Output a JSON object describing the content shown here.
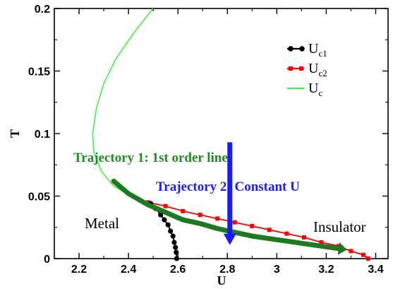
{
  "chart_data": {
    "type": "line",
    "title": "",
    "xlabel": "U",
    "ylabel": "T",
    "xlim": [
      2.1,
      3.45
    ],
    "ylim": [
      0,
      0.2
    ],
    "xticks": [
      2.2,
      2.4,
      2.6,
      2.8,
      3.0,
      3.2,
      3.4
    ],
    "xtick_labels": [
      "2.2",
      "2.4",
      "2.6",
      "2.8",
      "3",
      "3.2",
      "3.4"
    ],
    "yticks": [
      0,
      0.05,
      0.1,
      0.15,
      0.2
    ],
    "ytick_labels": [
      "0",
      "0.05",
      "0.1",
      "0.15",
      "0.2"
    ],
    "grid": false,
    "legend_position": "top-right",
    "series": [
      {
        "name": "U",
        "sub": "c1",
        "color": "#000000",
        "marker": "circle",
        "x": [
          2.49,
          2.51,
          2.53,
          2.545,
          2.56,
          2.57,
          2.58,
          2.585,
          2.59,
          2.593,
          2.595
        ],
        "y": [
          0.044,
          0.04,
          0.035,
          0.031,
          0.027,
          0.022,
          0.018,
          0.013,
          0.009,
          0.005,
          0.0
        ]
      },
      {
        "name": "U",
        "sub": "c2",
        "color": "#ff0000",
        "marker": "square",
        "x": [
          2.48,
          2.55,
          2.62,
          2.69,
          2.76,
          2.83,
          2.9,
          2.97,
          3.04,
          3.11,
          3.18,
          3.25,
          3.3,
          3.35,
          3.37
        ],
        "y": [
          0.045,
          0.042,
          0.038,
          0.035,
          0.032,
          0.029,
          0.026,
          0.023,
          0.02,
          0.017,
          0.013,
          0.01,
          0.006,
          0.003,
          0.0
        ]
      },
      {
        "name": "U",
        "sub": "c",
        "color": "#44ee44",
        "marker": "none",
        "x": [
          2.5,
          2.42,
          2.35,
          2.3,
          2.27,
          2.255,
          2.26,
          2.29,
          2.34,
          2.41,
          2.48,
          2.55,
          2.62,
          2.69,
          2.76,
          2.83,
          2.9,
          2.97,
          3.04,
          3.11,
          3.18,
          3.25,
          3.3,
          3.35,
          3.38
        ],
        "y": [
          0.2,
          0.18,
          0.16,
          0.14,
          0.12,
          0.1,
          0.085,
          0.07,
          0.058,
          0.05,
          0.045,
          0.042,
          0.038,
          0.035,
          0.032,
          0.029,
          0.026,
          0.023,
          0.02,
          0.017,
          0.013,
          0.01,
          0.006,
          0.003,
          0.0
        ]
      }
    ],
    "annotations": [
      {
        "id": "traj1",
        "text": "Trajectory 1: 1st order line",
        "color": "#1e8c1e",
        "x": 2.08,
        "y": 0.158
      },
      {
        "id": "traj2",
        "text": "Trajectory 2: Constant U",
        "color": "#1a1aff",
        "x": 2.46,
        "y": 0.165
      },
      {
        "id": "metal",
        "text": "Metal",
        "color": "#000000",
        "x": 2.16,
        "y": 0.05
      },
      {
        "id": "insulator",
        "text": "Insulator",
        "color": "#000000",
        "x": 3.2,
        "y": 0.045
      }
    ],
    "trajectory_1": {
      "color": "#1e7a1e",
      "x": [
        2.34,
        2.4,
        2.48,
        2.55,
        2.62,
        2.69,
        2.76,
        2.83,
        2.9,
        2.97,
        3.04,
        3.11,
        3.18,
        3.25
      ],
      "y": [
        0.062,
        0.052,
        0.043,
        0.037,
        0.031,
        0.028,
        0.024,
        0.021,
        0.018,
        0.016,
        0.014,
        0.012,
        0.01,
        0.008
      ]
    },
    "trajectory_2": {
      "color": "#1a1aff",
      "x": [
        2.81,
        2.81
      ],
      "y": [
        0.093,
        0.012
      ]
    }
  }
}
